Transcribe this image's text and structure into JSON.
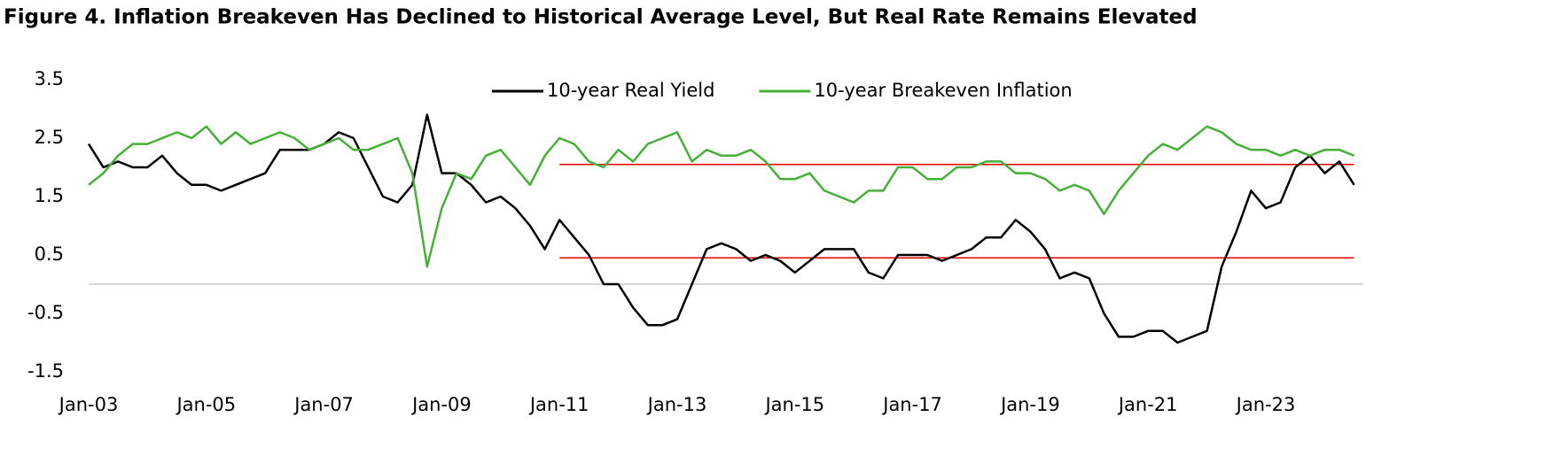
{
  "chart_data": {
    "type": "line",
    "title": "Figure 4. Inflation Breakeven Has Declined to Historical Average Level, But Real Rate Remains Elevated",
    "categories": [
      "Jan-03",
      null,
      null,
      null,
      null,
      null,
      null,
      null,
      "Jan-05",
      null,
      null,
      null,
      null,
      null,
      null,
      null,
      "Jan-07",
      null,
      null,
      null,
      null,
      null,
      null,
      null,
      "Jan-09",
      null,
      null,
      null,
      null,
      null,
      null,
      null,
      "Jan-11",
      null,
      null,
      null,
      null,
      null,
      null,
      null,
      "Jan-13",
      null,
      null,
      null,
      null,
      null,
      null,
      null,
      "Jan-15",
      null,
      null,
      null,
      null,
      null,
      null,
      null,
      "Jan-17",
      null,
      null,
      null,
      null,
      null,
      null,
      null,
      "Jan-19",
      null,
      null,
      null,
      null,
      null,
      null,
      null,
      "Jan-21",
      null,
      null,
      null,
      null,
      null,
      null,
      null,
      "Jan-23",
      null,
      null,
      null,
      null,
      null,
      null
    ],
    "series": [
      {
        "name": "10-year Real Yield",
        "color": "#000000",
        "values": [
          2.4,
          2.0,
          2.1,
          2.0,
          2.0,
          2.2,
          1.9,
          1.7,
          1.7,
          1.6,
          1.7,
          1.8,
          1.9,
          2.3,
          2.3,
          2.3,
          2.4,
          2.6,
          2.5,
          2.0,
          1.5,
          1.4,
          1.7,
          2.9,
          1.9,
          1.9,
          1.7,
          1.4,
          1.5,
          1.3,
          1.0,
          0.6,
          1.1,
          0.8,
          0.5,
          0.0,
          0.0,
          -0.4,
          -0.7,
          -0.7,
          -0.6,
          0.0,
          0.6,
          0.7,
          0.6,
          0.4,
          0.5,
          0.4,
          0.2,
          0.4,
          0.6,
          0.6,
          0.6,
          0.2,
          0.1,
          0.5,
          0.5,
          0.5,
          0.4,
          0.5,
          0.6,
          0.8,
          0.8,
          1.1,
          0.9,
          0.6,
          0.1,
          0.2,
          0.1,
          -0.5,
          -0.9,
          -0.9,
          -0.8,
          -0.8,
          -1.0,
          -0.9,
          -0.8,
          0.3,
          0.9,
          1.6,
          1.3,
          1.4,
          2.0,
          2.2,
          1.9,
          2.1,
          1.7
        ]
      },
      {
        "name": "10-year Breakeven Inflation",
        "color": "#44b035",
        "values": [
          1.7,
          1.9,
          2.2,
          2.4,
          2.4,
          2.5,
          2.6,
          2.5,
          2.7,
          2.4,
          2.6,
          2.4,
          2.5,
          2.6,
          2.5,
          2.3,
          2.4,
          2.5,
          2.3,
          2.3,
          2.4,
          2.5,
          1.9,
          0.3,
          1.3,
          1.9,
          1.8,
          2.2,
          2.3,
          2.0,
          1.7,
          2.2,
          2.5,
          2.4,
          2.1,
          2.0,
          2.3,
          2.1,
          2.4,
          2.5,
          2.6,
          2.1,
          2.3,
          2.2,
          2.2,
          2.3,
          2.1,
          1.8,
          1.8,
          1.9,
          1.6,
          1.5,
          1.4,
          1.6,
          1.6,
          2.0,
          2.0,
          1.8,
          1.8,
          2.0,
          2.0,
          2.1,
          2.1,
          1.9,
          1.9,
          1.8,
          1.6,
          1.7,
          1.6,
          1.2,
          1.6,
          1.9,
          2.2,
          2.4,
          2.3,
          2.5,
          2.7,
          2.6,
          2.4,
          2.3,
          2.3,
          2.2,
          2.3,
          2.2,
          2.3,
          2.3,
          2.2
        ]
      },
      {
        "color": "#e00000",
        "values": [
          null,
          null,
          null,
          null,
          null,
          null,
          null,
          null,
          null,
          null,
          null,
          null,
          null,
          null,
          null,
          null,
          null,
          null,
          null,
          null,
          null,
          null,
          null,
          null,
          null,
          null,
          null,
          null,
          null,
          null,
          null,
          null,
          2.05,
          2.05,
          2.05,
          2.05,
          2.05,
          2.05,
          2.05,
          2.05,
          2.05,
          2.05,
          2.05,
          2.05,
          2.05,
          2.05,
          2.05,
          2.05,
          2.05,
          2.05,
          2.05,
          2.05,
          2.05,
          2.05,
          2.05,
          2.05,
          2.05,
          2.05,
          2.05,
          2.05,
          2.05,
          2.05,
          2.05,
          2.05,
          2.05,
          2.05,
          2.05,
          2.05,
          2.05,
          2.05,
          2.05,
          2.05,
          2.05,
          2.05,
          2.05,
          2.05,
          2.05,
          2.05,
          2.05,
          2.05,
          2.05,
          2.05,
          2.05,
          2.05,
          2.05,
          2.05,
          2.05
        ]
      },
      {
        "color": "#e00000",
        "values": [
          null,
          null,
          null,
          null,
          null,
          null,
          null,
          null,
          null,
          null,
          null,
          null,
          null,
          null,
          null,
          null,
          null,
          null,
          null,
          null,
          null,
          null,
          null,
          null,
          null,
          null,
          null,
          null,
          null,
          null,
          null,
          null,
          0.45,
          0.45,
          0.45,
          0.45,
          0.45,
          0.45,
          0.45,
          0.45,
          0.45,
          0.45,
          0.45,
          0.45,
          0.45,
          0.45,
          0.45,
          0.45,
          0.45,
          0.45,
          0.45,
          0.45,
          0.45,
          0.45,
          0.45,
          0.45,
          0.45,
          0.45,
          0.45,
          0.45,
          0.45,
          0.45,
          0.45,
          0.45,
          0.45,
          0.45,
          0.45,
          0.45,
          0.45,
          0.45,
          0.45,
          0.45,
          0.45,
          0.45,
          0.45,
          0.45,
          0.45,
          0.45,
          0.45,
          0.45,
          0.45,
          0.45,
          0.45,
          0.45,
          0.45,
          0.45,
          0.45
        ]
      }
    ],
    "ylim": [
      -1.5,
      3.5
    ],
    "yticks": [
      -1.5,
      -0.5,
      0.5,
      1.5,
      2.5,
      3.5
    ],
    "legend": "top"
  }
}
